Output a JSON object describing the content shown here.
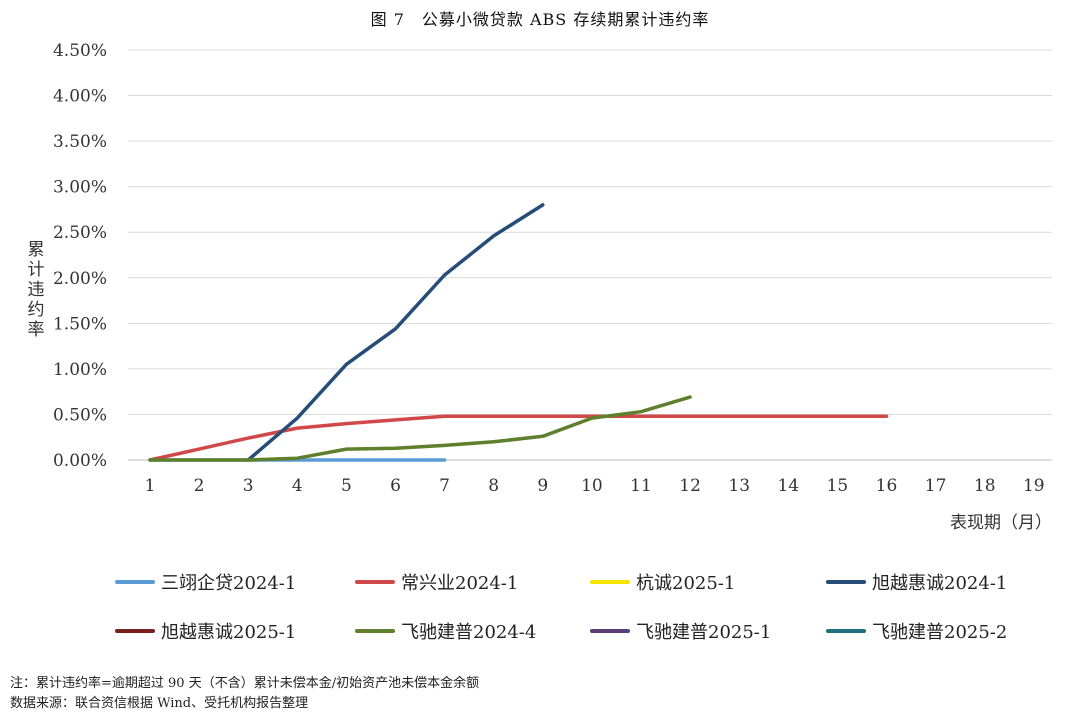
{
  "figure_title": "图 7　公募小微贷款 ABS 存续期累计违约率",
  "chart_data": {
    "type": "line",
    "ylabel": "累计违约率",
    "xlabel": "表现期（月）",
    "ylim": [
      0,
      4.5
    ],
    "yticks": [
      "0.00%",
      "0.50%",
      "1.00%",
      "1.50%",
      "2.00%",
      "2.50%",
      "3.00%",
      "3.50%",
      "4.00%",
      "4.50%"
    ],
    "xticks": [
      "1",
      "2",
      "3",
      "4",
      "5",
      "6",
      "7",
      "8",
      "9",
      "10",
      "11",
      "12",
      "13",
      "14",
      "15",
      "16",
      "17",
      "18",
      "19"
    ],
    "grid": "horizontal",
    "legend_position": "bottom",
    "series": [
      {
        "name": "三翊企贷2024-1",
        "color": "#5b9bd5",
        "x": [
          1,
          2,
          3,
          4,
          5,
          6,
          7
        ],
        "y": [
          0,
          0,
          0,
          0,
          0,
          0,
          0
        ]
      },
      {
        "name": "常兴业2024-1",
        "color": "#d0494a",
        "x": [
          1,
          2,
          3,
          4,
          5,
          6,
          7,
          8,
          9,
          10,
          11,
          12,
          13,
          14,
          15,
          16
        ],
        "y": [
          0,
          0.12,
          0.24,
          0.35,
          0.4,
          0.44,
          0.48,
          0.48,
          0.48,
          0.48,
          0.48,
          0.48,
          0.48,
          0.48,
          0.48,
          0.48
        ]
      },
      {
        "name": "杭诚2025-1",
        "color": "#f5e400",
        "x": [],
        "y": []
      },
      {
        "name": "旭越惠诚2024-1",
        "color": "#264c78",
        "x": [
          3,
          4,
          5,
          6,
          7,
          8,
          9
        ],
        "y": [
          0,
          0.46,
          1.05,
          1.44,
          2.03,
          2.46,
          2.8
        ]
      },
      {
        "name": "旭越惠诚2025-1",
        "color": "#7a1f1f",
        "x": [],
        "y": []
      },
      {
        "name": "飞驰建普2024-4",
        "color": "#5e7f2c",
        "x": [
          1,
          2,
          3,
          4,
          5,
          6,
          7,
          8,
          9,
          10,
          11,
          12
        ],
        "y": [
          0,
          0,
          0,
          0.02,
          0.12,
          0.13,
          0.16,
          0.2,
          0.26,
          0.46,
          0.53,
          0.69
        ]
      },
      {
        "name": "飞驰建普2025-1",
        "color": "#5a3e7a",
        "x": [],
        "y": []
      },
      {
        "name": "飞驰建普2025-2",
        "color": "#1f6f80",
        "x": [],
        "y": []
      }
    ]
  },
  "notes": [
    "注：累计违约率=逾期超过 90 天（不含）累计未偿本金/初始资产池未偿本金余额",
    "数据来源：联合资信根据 Wind、受托机构报告整理"
  ]
}
